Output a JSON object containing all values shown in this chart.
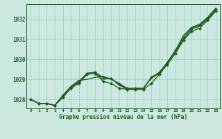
{
  "hours": [
    0,
    1,
    2,
    3,
    4,
    5,
    6,
    7,
    8,
    9,
    10,
    11,
    12,
    13,
    14,
    15,
    16,
    17,
    18,
    19,
    20,
    21,
    22,
    23
  ],
  "line1": [
    1028.0,
    1027.8,
    1027.8,
    1027.7,
    1028.2,
    1028.6,
    1028.9,
    1029.3,
    1029.35,
    1029.1,
    1029.05,
    1028.75,
    1028.55,
    1028.55,
    1028.55,
    1029.1,
    1029.35,
    1029.85,
    1030.45,
    1031.1,
    1031.55,
    1031.7,
    1032.05,
    1032.5
  ],
  "line2": [
    1028.0,
    1027.8,
    1027.8,
    1027.7,
    1028.2,
    1028.65,
    1028.95,
    1029.0,
    1029.1,
    1029.15,
    1029.0,
    1028.8,
    1028.55,
    1028.55,
    1028.55,
    1029.1,
    1029.35,
    1029.85,
    1030.45,
    1031.2,
    1031.6,
    1031.75,
    1032.1,
    1032.55
  ],
  "line3": [
    1028.0,
    1027.8,
    1027.8,
    1027.7,
    1028.15,
    1028.6,
    1028.85,
    1029.3,
    1029.35,
    1029.0,
    1029.05,
    1028.7,
    1028.5,
    1028.5,
    1028.55,
    1029.05,
    1029.3,
    1029.8,
    1030.4,
    1031.0,
    1031.5,
    1031.65,
    1032.0,
    1032.45
  ],
  "line4": [
    1028.0,
    1027.8,
    1027.8,
    1027.7,
    1028.1,
    1028.55,
    1028.8,
    1029.25,
    1029.3,
    1028.9,
    1028.8,
    1028.55,
    1028.5,
    1028.5,
    1028.5,
    1028.8,
    1029.25,
    1029.75,
    1030.3,
    1030.95,
    1031.4,
    1031.55,
    1031.95,
    1032.4
  ],
  "bg_color": "#cce8e0",
  "line_color": "#1e5c1e",
  "grid_color": "#99ccbb",
  "xlabel": "Graphe pression niveau de la mer (hPa)",
  "ylim_min": 1027.55,
  "ylim_max": 1032.75,
  "yticks": [
    1028,
    1029,
    1030,
    1031,
    1032
  ],
  "marker": "D",
  "marker_size": 2.2,
  "linewidth": 0.9
}
